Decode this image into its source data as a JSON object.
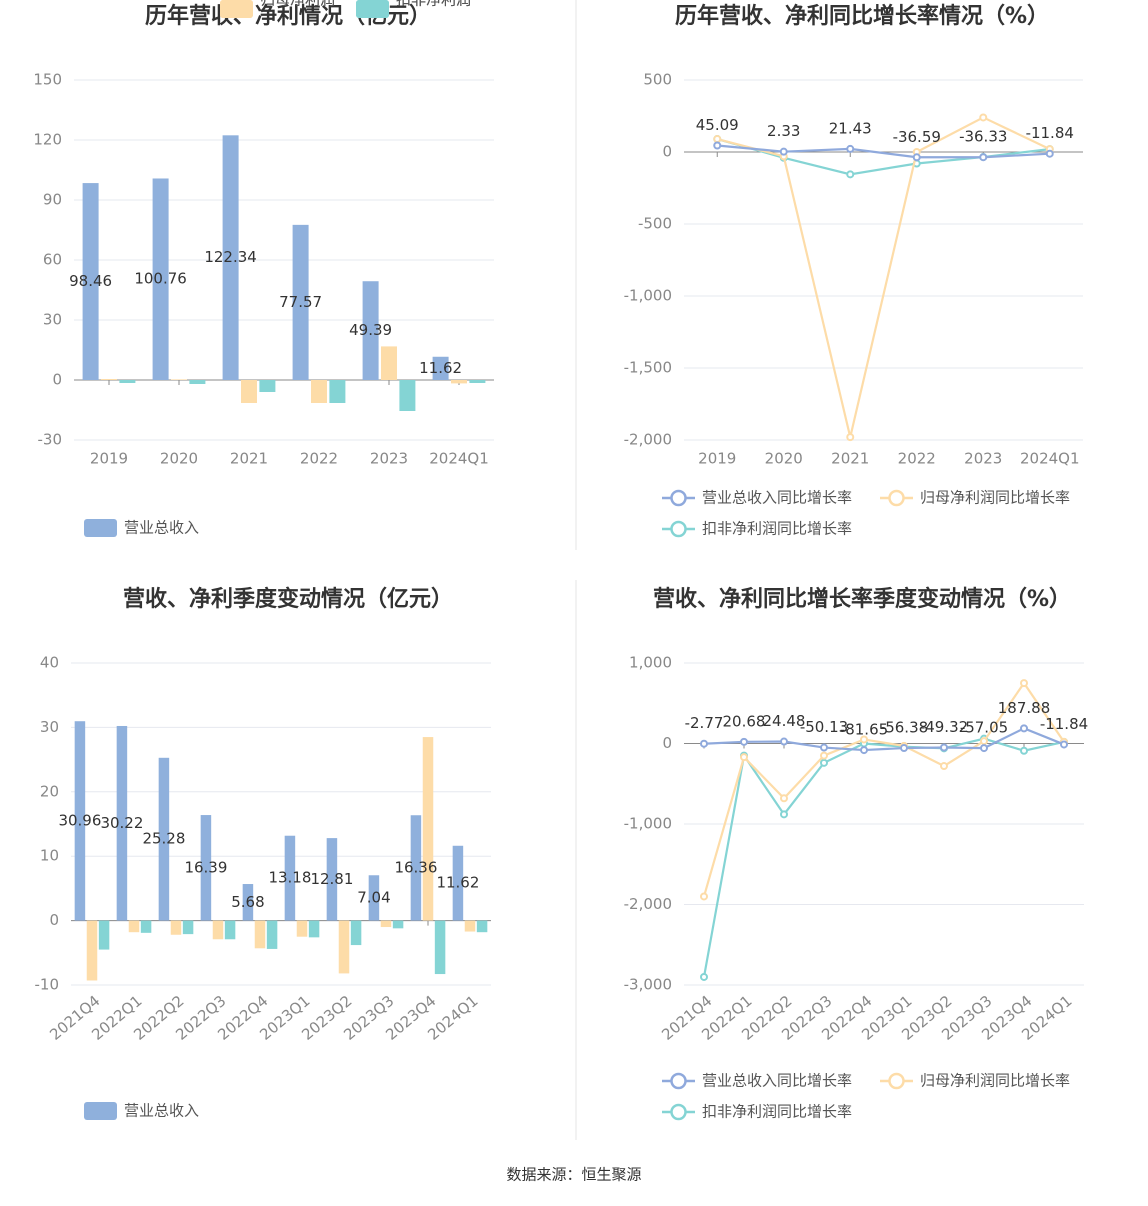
{
  "chart_data": [
    {
      "type": "bar",
      "title": "历年营收、净利情况（亿元）",
      "categories": [
        "2019",
        "2020",
        "2021",
        "2022",
        "2023",
        "2024Q1"
      ],
      "series": [
        {
          "name": "营业总收入",
          "color": "#8fb0dc",
          "values": [
            98.46,
            100.76,
            122.34,
            77.57,
            49.39,
            11.62
          ]
        },
        {
          "name": "归母净利润",
          "color": "#fddca8",
          "values": [
            0.5,
            0.3,
            -11.5,
            -11.5,
            16.8,
            -1.7
          ]
        },
        {
          "name": "扣非净利润",
          "color": "#84d4d4",
          "values": [
            -1.5,
            -2,
            -6,
            -11.5,
            -15.5,
            -1.5
          ]
        }
      ],
      "ylim": [
        -30,
        150
      ],
      "yticks": [
        -30,
        0,
        30,
        60,
        90,
        120,
        150
      ],
      "grid": true
    },
    {
      "type": "line",
      "title": "历年营收、净利同比增长率情况（%）",
      "categories": [
        "2019",
        "2020",
        "2021",
        "2022",
        "2023",
        "2024Q1"
      ],
      "series": [
        {
          "name": "营业总收入同比增长率",
          "color": "#8fa9dc",
          "values": [
            45.09,
            2.33,
            21.43,
            -36.59,
            -36.33,
            -11.84
          ]
        },
        {
          "name": "归母净利润同比增长率",
          "color": "#fddca8",
          "values": [
            90,
            -30,
            -1980,
            0,
            240,
            20
          ]
        },
        {
          "name": "扣非净利润同比增长率",
          "color": "#84d4d4",
          "values": [
            90,
            -40,
            -155,
            -80,
            -35,
            20
          ]
        }
      ],
      "ylim": [
        -2000,
        500
      ],
      "yticks": [
        {
          "value": -2000,
          "label": "-2,000"
        },
        {
          "value": -1500,
          "label": "-1,500"
        },
        {
          "value": -1000,
          "label": "-1,000"
        },
        -500,
        0,
        500
      ],
      "grid": true
    },
    {
      "type": "bar",
      "title": "营收、净利季度变动情况（亿元）",
      "categories": [
        "2021Q4",
        "2022Q1",
        "2022Q2",
        "2022Q3",
        "2022Q4",
        "2023Q1",
        "2023Q2",
        "2023Q3",
        "2023Q4",
        "2024Q1"
      ],
      "series": [
        {
          "name": "营业总收入",
          "color": "#8fb0dc",
          "values": [
            30.96,
            30.22,
            25.28,
            16.39,
            5.68,
            13.18,
            12.81,
            7.04,
            16.36,
            11.62
          ]
        },
        {
          "name": "归母净利润",
          "color": "#fddca8",
          "values": [
            -9.3,
            -1.8,
            -2.2,
            -2.9,
            -4.3,
            -2.5,
            -8.2,
            -1,
            28.5,
            -1.7
          ]
        },
        {
          "name": "扣非净利润",
          "color": "#84d4d4",
          "values": [
            -4.5,
            -1.9,
            -2.1,
            -2.9,
            -4.4,
            -2.6,
            -3.8,
            -1.2,
            -8.3,
            -1.8
          ]
        }
      ],
      "ylim": [
        -10,
        40
      ],
      "yticks": [
        -10,
        0,
        10,
        20,
        30,
        40
      ],
      "grid": true
    },
    {
      "type": "line",
      "title": "营收、净利同比增长率季度变动情况（%）",
      "categories": [
        "2021Q4",
        "2022Q1",
        "2022Q2",
        "2022Q3",
        "2022Q4",
        "2023Q1",
        "2023Q2",
        "2023Q3",
        "2023Q4",
        "2024Q1"
      ],
      "series": [
        {
          "name": "营业总收入同比增长率",
          "color": "#8fa9dc",
          "values": [
            -2.77,
            20.68,
            24.48,
            -50.13,
            -81.65,
            -56.38,
            -49.32,
            -57.05,
            187.88,
            -11.84
          ]
        },
        {
          "name": "归母净利润同比增长率",
          "color": "#fddca8",
          "values": [
            -1900,
            -170,
            -680,
            -150,
            50,
            -30,
            -280,
            30,
            750,
            20
          ]
        },
        {
          "name": "扣非净利润同比增长率",
          "color": "#84d4d4",
          "values": [
            -2900,
            -150,
            -880,
            -240,
            0,
            -40,
            -60,
            60,
            -90,
            20
          ]
        }
      ],
      "ylim": [
        -3000,
        1000
      ],
      "yticks": [
        {
          "value": -3000,
          "label": "-3,000"
        },
        {
          "value": -2000,
          "label": "-2,000"
        },
        {
          "value": -1000,
          "label": "-1,000"
        },
        0,
        {
          "value": 1000,
          "label": "1,000"
        }
      ],
      "grid": true
    }
  ],
  "source": "数据来源：恒生聚源"
}
